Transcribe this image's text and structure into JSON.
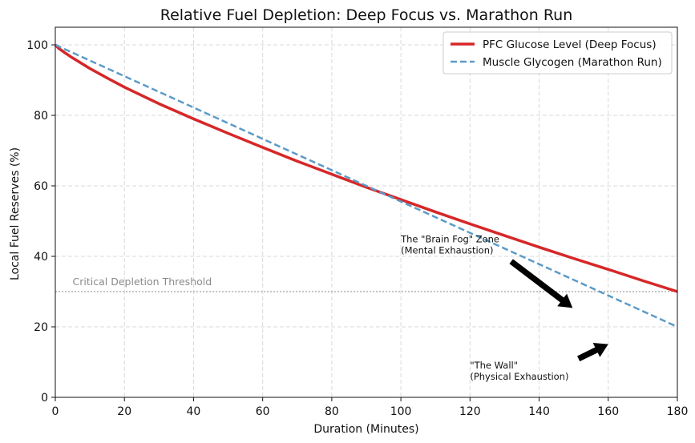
{
  "chart_data": {
    "type": "line",
    "title": "Relative Fuel Depletion: Deep Focus vs. Marathon Run",
    "xlabel": "Duration (Minutes)",
    "ylabel": "Local Fuel Reserves (%)",
    "xlim": [
      0,
      180
    ],
    "ylim": [
      0,
      105
    ],
    "xticks": [
      "0",
      "20",
      "40",
      "60",
      "80",
      "100",
      "120",
      "140",
      "160",
      "180"
    ],
    "xtick_values": [
      0,
      20,
      40,
      60,
      80,
      100,
      120,
      140,
      160,
      180
    ],
    "yticks": [
      "0",
      "20",
      "40",
      "60",
      "80",
      "100"
    ],
    "ytick_values": [
      0,
      20,
      40,
      60,
      80,
      100
    ],
    "grid": true,
    "legend_position": "top-right",
    "series": [
      {
        "name": "PFC Glucose Level (Deep Focus)",
        "color": "#d62728",
        "style": "solid",
        "x": [
          0,
          1,
          2,
          3,
          5,
          7.5,
          10,
          15,
          20,
          30,
          40,
          50,
          60,
          70,
          80,
          90,
          100,
          110,
          120,
          130,
          140,
          150,
          160,
          170,
          180
        ],
        "values": [
          100,
          99.0,
          98.3,
          97.6,
          96.3,
          94.8,
          93.3,
          90.6,
          88.0,
          83.3,
          79.0,
          74.9,
          70.9,
          67.0,
          63.3,
          59.6,
          56.1,
          52.6,
          49.2,
          45.9,
          42.6,
          39.4,
          36.3,
          33.1,
          30.0
        ]
      },
      {
        "name": "Muscle Glycogen (Marathon Run)",
        "color": "#5b9bc8",
        "style": "dashed",
        "x": [
          0,
          180
        ],
        "values": [
          100,
          20
        ]
      }
    ],
    "threshold": {
      "label": "Critical Depletion Threshold",
      "value": 30,
      "color": "#b0b0b0"
    },
    "annotations": [
      {
        "lines": [
          "The \"Brain Fog\" Zone",
          "(Mental Exhaustion)"
        ],
        "text_xy": [
          100,
          44
        ],
        "arrow_from": [
          132,
          38.5
        ],
        "arrow_to": [
          149.5,
          25.5
        ]
      },
      {
        "lines": [
          "\"The Wall\"",
          "(Physical Exhaustion)"
        ],
        "text_xy": [
          120,
          8.2
        ],
        "arrow_from": [
          151.5,
          11
        ],
        "arrow_to": [
          159.8,
          15
        ]
      }
    ]
  }
}
